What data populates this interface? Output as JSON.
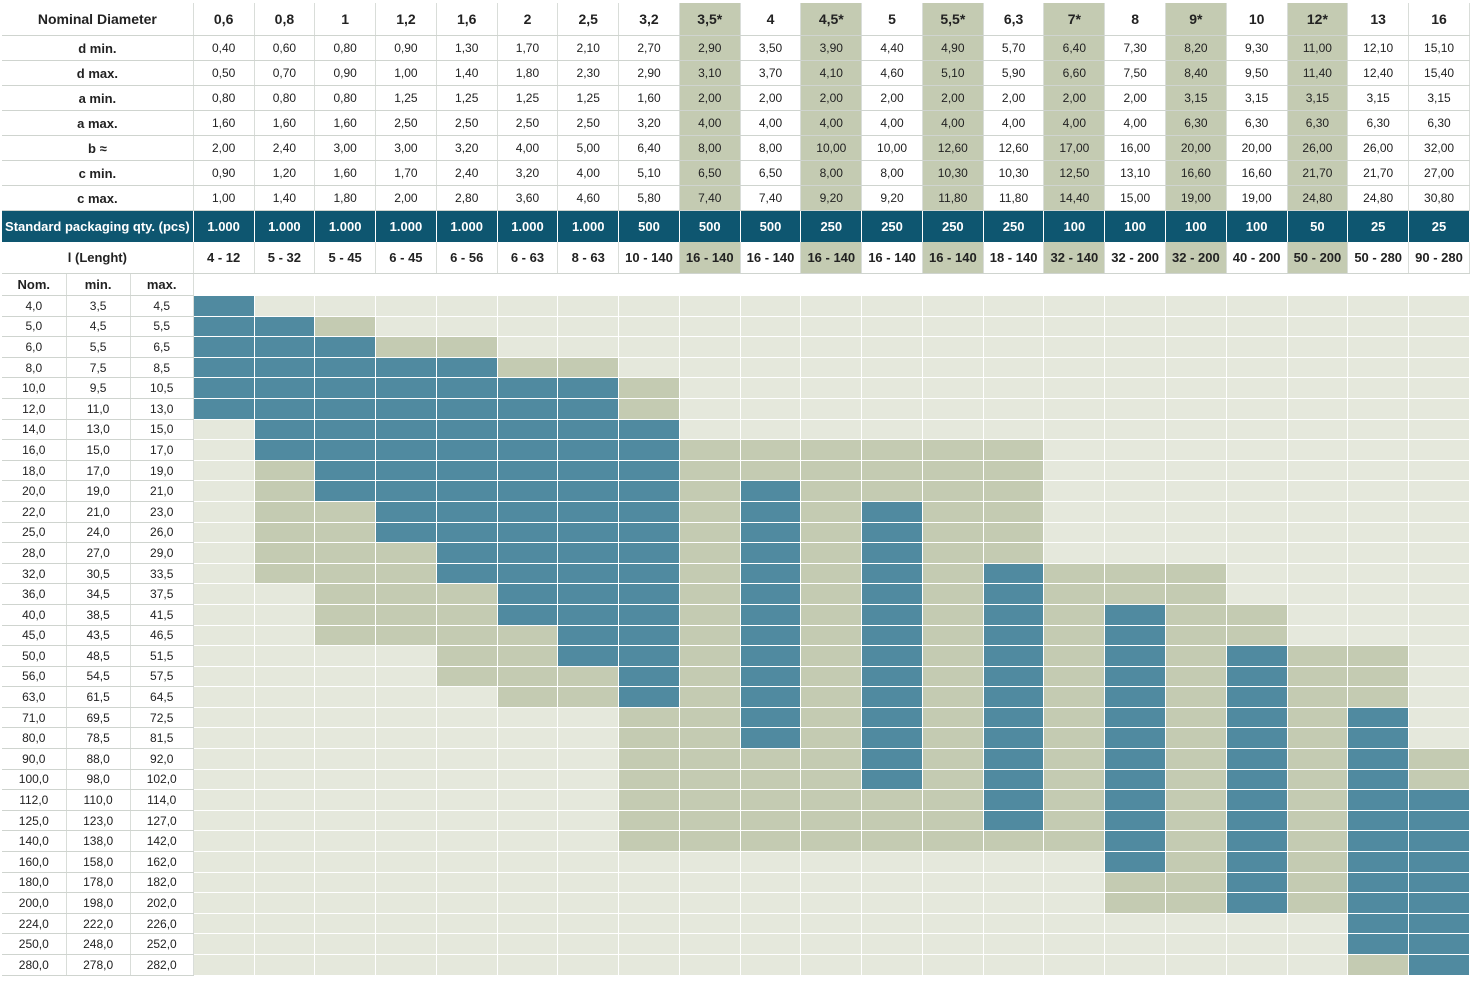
{
  "colors": {
    "available": "#508aa0",
    "optional": "#c4cbb2",
    "empty": "#e5e8dc",
    "header_band": "#0e5670",
    "highlight": "#c4cbb2"
  },
  "header_label": "Nominal Diameter",
  "diameters": [
    "0,6",
    "0,8",
    "1",
    "1,2",
    "1,6",
    "2",
    "2,5",
    "3,2",
    "3,5*",
    "4",
    "4,5*",
    "5",
    "5,5*",
    "6,3",
    "7*",
    "8",
    "9*",
    "10",
    "12*",
    "13",
    "16"
  ],
  "highlighted_columns": [
    8,
    10,
    12,
    14,
    16,
    18
  ],
  "spec_rows": [
    {
      "label": "d min.",
      "values": [
        "0,40",
        "0,60",
        "0,80",
        "0,90",
        "1,30",
        "1,70",
        "2,10",
        "2,70",
        "2,90",
        "3,50",
        "3,90",
        "4,40",
        "4,90",
        "5,70",
        "6,40",
        "7,30",
        "8,20",
        "9,30",
        "11,00",
        "12,10",
        "15,10"
      ]
    },
    {
      "label": "d max.",
      "values": [
        "0,50",
        "0,70",
        "0,90",
        "1,00",
        "1,40",
        "1,80",
        "2,30",
        "2,90",
        "3,10",
        "3,70",
        "4,10",
        "4,60",
        "5,10",
        "5,90",
        "6,60",
        "7,50",
        "8,40",
        "9,50",
        "11,40",
        "12,40",
        "15,40"
      ]
    },
    {
      "label": "a min.",
      "values": [
        "0,80",
        "0,80",
        "0,80",
        "1,25",
        "1,25",
        "1,25",
        "1,25",
        "1,60",
        "2,00",
        "2,00",
        "2,00",
        "2,00",
        "2,00",
        "2,00",
        "2,00",
        "2,00",
        "3,15",
        "3,15",
        "3,15",
        "3,15",
        "3,15"
      ]
    },
    {
      "label": "a max.",
      "values": [
        "1,60",
        "1,60",
        "1,60",
        "2,50",
        "2,50",
        "2,50",
        "2,50",
        "3,20",
        "4,00",
        "4,00",
        "4,00",
        "4,00",
        "4,00",
        "4,00",
        "4,00",
        "4,00",
        "6,30",
        "6,30",
        "6,30",
        "6,30",
        "6,30"
      ]
    },
    {
      "label": "b ≈",
      "values": [
        "2,00",
        "2,40",
        "3,00",
        "3,00",
        "3,20",
        "4,00",
        "5,00",
        "6,40",
        "8,00",
        "8,00",
        "10,00",
        "10,00",
        "12,60",
        "12,60",
        "17,00",
        "16,00",
        "20,00",
        "20,00",
        "26,00",
        "26,00",
        "32,00"
      ]
    },
    {
      "label": "c min.",
      "values": [
        "0,90",
        "1,20",
        "1,60",
        "1,70",
        "2,40",
        "3,20",
        "4,00",
        "5,10",
        "6,50",
        "6,50",
        "8,00",
        "8,00",
        "10,30",
        "10,30",
        "12,50",
        "13,10",
        "16,60",
        "16,60",
        "21,70",
        "21,70",
        "27,00"
      ]
    },
    {
      "label": "c max.",
      "values": [
        "1,00",
        "1,40",
        "1,80",
        "2,00",
        "2,80",
        "3,60",
        "4,60",
        "5,80",
        "7,40",
        "7,40",
        "9,20",
        "9,20",
        "11,80",
        "11,80",
        "14,40",
        "15,00",
        "19,00",
        "19,00",
        "24,80",
        "24,80",
        "30,80"
      ]
    }
  ],
  "packaging": {
    "label": "Standard packaging qty. (pcs)",
    "values": [
      "1.000",
      "1.000",
      "1.000",
      "1.000",
      "1.000",
      "1.000",
      "1.000",
      "500",
      "500",
      "500",
      "250",
      "250",
      "250",
      "250",
      "100",
      "100",
      "100",
      "100",
      "50",
      "25",
      "25"
    ]
  },
  "lengths": {
    "label": "l (Lenght)",
    "values": [
      "4 - 12",
      "5 - 32",
      "5 - 45",
      "6 - 45",
      "6 - 56",
      "6 - 63",
      "8 - 63",
      "10 - 140",
      "16 - 140",
      "16 - 140",
      "16 - 140",
      "16 - 140",
      "16 - 140",
      "18 - 140",
      "32 - 140",
      "32 - 200",
      "32 - 200",
      "40 - 200",
      "50 - 200",
      "50 - 280",
      "90 - 280"
    ]
  },
  "length_headers": {
    "nom": "Nom.",
    "min": "min.",
    "max": "max."
  },
  "length_rows": [
    {
      "nom": "4,0",
      "min": "3,5",
      "max": "4,5",
      "cells": "200000000000000000000"
    },
    {
      "nom": "5,0",
      "min": "4,5",
      "max": "5,5",
      "cells": "221000000000000000000"
    },
    {
      "nom": "6,0",
      "min": "5,5",
      "max": "6,5",
      "cells": "222110000000000000000"
    },
    {
      "nom": "8,0",
      "min": "7,5",
      "max": "8,5",
      "cells": "222221100000000000000"
    },
    {
      "nom": "10,0",
      "min": "9,5",
      "max": "10,5",
      "cells": "222222210000000000000"
    },
    {
      "nom": "12,0",
      "min": "11,0",
      "max": "13,0",
      "cells": "222222210000000000000"
    },
    {
      "nom": "14,0",
      "min": "13,0",
      "max": "15,0",
      "cells": "022222220000000000000"
    },
    {
      "nom": "16,0",
      "min": "15,0",
      "max": "17,0",
      "cells": "022222221111110000000"
    },
    {
      "nom": "18,0",
      "min": "17,0",
      "max": "19,0",
      "cells": "012222221111110000000"
    },
    {
      "nom": "20,0",
      "min": "19,0",
      "max": "21,0",
      "cells": "012222221211110000000"
    },
    {
      "nom": "22,0",
      "min": "21,0",
      "max": "23,0",
      "cells": "011222221212110000000"
    },
    {
      "nom": "25,0",
      "min": "24,0",
      "max": "26,0",
      "cells": "011222221212110000000"
    },
    {
      "nom": "28,0",
      "min": "27,0",
      "max": "29,0",
      "cells": "011122221212110000000"
    },
    {
      "nom": "32,0",
      "min": "30,5",
      "max": "33,5",
      "cells": "011122221212121110000"
    },
    {
      "nom": "36,0",
      "min": "34,5",
      "max": "37,5",
      "cells": "001112221212121110000"
    },
    {
      "nom": "40,0",
      "min": "38,5",
      "max": "41,5",
      "cells": "001112221212121211000"
    },
    {
      "nom": "45,0",
      "min": "43,5",
      "max": "46,5",
      "cells": "001111221212121211000"
    },
    {
      "nom": "50,0",
      "min": "48,5",
      "max": "51,5",
      "cells": "000011221212121212110"
    },
    {
      "nom": "56,0",
      "min": "54,5",
      "max": "57,5",
      "cells": "000011121212121212110"
    },
    {
      "nom": "63,0",
      "min": "61,5",
      "max": "64,5",
      "cells": "000001121212121212110"
    },
    {
      "nom": "71,0",
      "min": "69,5",
      "max": "72,5",
      "cells": "000000011212121212120"
    },
    {
      "nom": "80,0",
      "min": "78,5",
      "max": "81,5",
      "cells": "000000011212121212120"
    },
    {
      "nom": "90,0",
      "min": "88,0",
      "max": "92,0",
      "cells": "000000011112121212121"
    },
    {
      "nom": "100,0",
      "min": "98,0",
      "max": "102,0",
      "cells": "000000011112121212121"
    },
    {
      "nom": "112,0",
      "min": "110,0",
      "max": "114,0",
      "cells": "000000011111121212122"
    },
    {
      "nom": "125,0",
      "min": "123,0",
      "max": "127,0",
      "cells": "000000011111121212122"
    },
    {
      "nom": "140,0",
      "min": "138,0",
      "max": "142,0",
      "cells": "000000011111111212122"
    },
    {
      "nom": "160,0",
      "min": "158,0",
      "max": "162,0",
      "cells": "000000000000000212122"
    },
    {
      "nom": "180,0",
      "min": "178,0",
      "max": "182,0",
      "cells": "000000000000000112122"
    },
    {
      "nom": "200,0",
      "min": "198,0",
      "max": "202,0",
      "cells": "000000000000000112122"
    },
    {
      "nom": "224,0",
      "min": "222,0",
      "max": "226,0",
      "cells": "000000000000000000022"
    },
    {
      "nom": "250,0",
      "min": "248,0",
      "max": "252,0",
      "cells": "000000000000000000022"
    },
    {
      "nom": "280,0",
      "min": "278,0",
      "max": "282,0",
      "cells": "000000000000000000012"
    }
  ]
}
